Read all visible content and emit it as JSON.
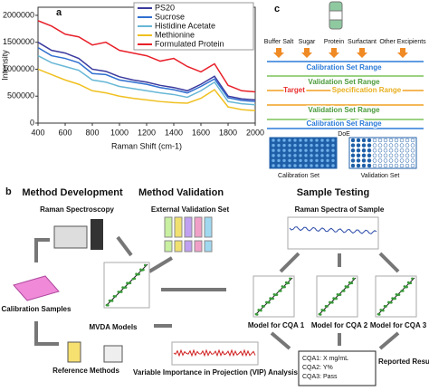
{
  "chart_data": {
    "type": "line",
    "panel": "a",
    "x_label": "Raman Shift (cm-1)",
    "y_label": "Intensity",
    "x": [
      400,
      500,
      600,
      700,
      800,
      900,
      1000,
      1100,
      1200,
      1300,
      1400,
      1500,
      1600,
      1700,
      1800,
      1900,
      2000
    ],
    "series": [
      {
        "name": "PS20",
        "color": "#3b3a9e",
        "values": [
          1500000,
          1350000,
          1300000,
          1200000,
          1000000,
          960000,
          860000,
          800000,
          760000,
          700000,
          660000,
          600000,
          720000,
          870000,
          500000,
          450000,
          430000
        ]
      },
      {
        "name": "Sucrose",
        "color": "#2f6fd0",
        "values": [
          1400000,
          1250000,
          1200000,
          1120000,
          920000,
          900000,
          800000,
          760000,
          720000,
          660000,
          620000,
          560000,
          680000,
          820000,
          470000,
          420000,
          400000
        ]
      },
      {
        "name": "Histidine Acetate",
        "color": "#67b7d6",
        "values": [
          1250000,
          1120000,
          1050000,
          980000,
          800000,
          760000,
          680000,
          640000,
          600000,
          560000,
          530000,
          480000,
          600000,
          760000,
          400000,
          360000,
          340000
        ]
      },
      {
        "name": "Methionine",
        "color": "#f0c020",
        "values": [
          1000000,
          900000,
          800000,
          720000,
          600000,
          560000,
          500000,
          460000,
          430000,
          400000,
          380000,
          370000,
          460000,
          620000,
          300000,
          250000,
          230000
        ]
      },
      {
        "name": "Formulated Protein",
        "color": "#e8202a",
        "values": [
          1900000,
          1800000,
          1650000,
          1600000,
          1450000,
          1500000,
          1350000,
          1300000,
          1250000,
          1150000,
          1200000,
          1050000,
          950000,
          1100000,
          700000,
          600000,
          580000
        ]
      }
    ],
    "xlim": [
      400,
      2000
    ],
    "xticks": [
      400,
      600,
      800,
      1000,
      1200,
      1400,
      1600,
      1800,
      2000
    ],
    "ylim": [
      0,
      2150000
    ],
    "yticks": [
      0,
      500000,
      1000000,
      1500000,
      2000000
    ]
  },
  "panel_c": {
    "label": "c",
    "components": [
      "Buffer Salt",
      "Sugar",
      "Protein",
      "Surfactant",
      "Other Excipients"
    ],
    "ranges": [
      "Calibration Set Range",
      "Validation Set Range",
      "Target",
      "Specification Range",
      "Validation Set Range",
      "Calibration Set Range"
    ],
    "design": "DoE",
    "plates": [
      "Calibration Set",
      "Validation Set"
    ]
  },
  "panel_b": {
    "label": "b",
    "headings": [
      "Method Development",
      "Method Validation",
      "Sample Testing"
    ],
    "steps": [
      "Raman Spectroscopy",
      "External Validation Set",
      "Raman Spectra of Sample",
      "Calibration Samples",
      "MVDA Models",
      "Reference Methods",
      "Variable Importance in Projection (VIP) Analysis"
    ],
    "models": [
      "Model for CQA 1",
      "Model for CQA 2",
      "Model for CQA 3"
    ],
    "results": [
      "CQA1: X mg/mL",
      "CQA2: Y%",
      "CQA3: Pass"
    ],
    "results_label": "Reported Results"
  }
}
